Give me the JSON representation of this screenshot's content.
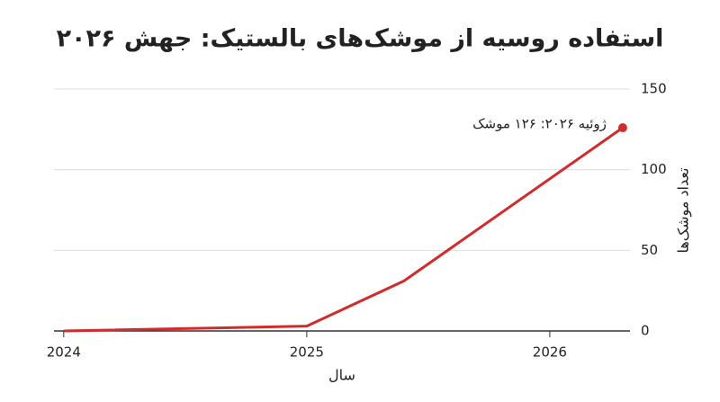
{
  "chart_data": {
    "type": "line",
    "title": "استفاده روسیه از موشک‌های بالستیک: جهش ۲۰۲۶",
    "x_label": "سال",
    "y_label": "تعداد موشک‌ها",
    "x": [
      2024,
      2025,
      2025.4,
      2026.3
    ],
    "values": [
      0,
      3,
      31,
      126
    ],
    "color": "#d12b2b",
    "annotation": "ژوئیه ۲۰۲۶: ۱۲۶ موشک",
    "xlim": [
      2023.96,
      2026.33
    ],
    "xticks": [
      2024,
      2025,
      2026
    ],
    "ylim": [
      0,
      150
    ],
    "yticks": [
      0,
      50,
      100,
      150
    ],
    "grid": true
  }
}
